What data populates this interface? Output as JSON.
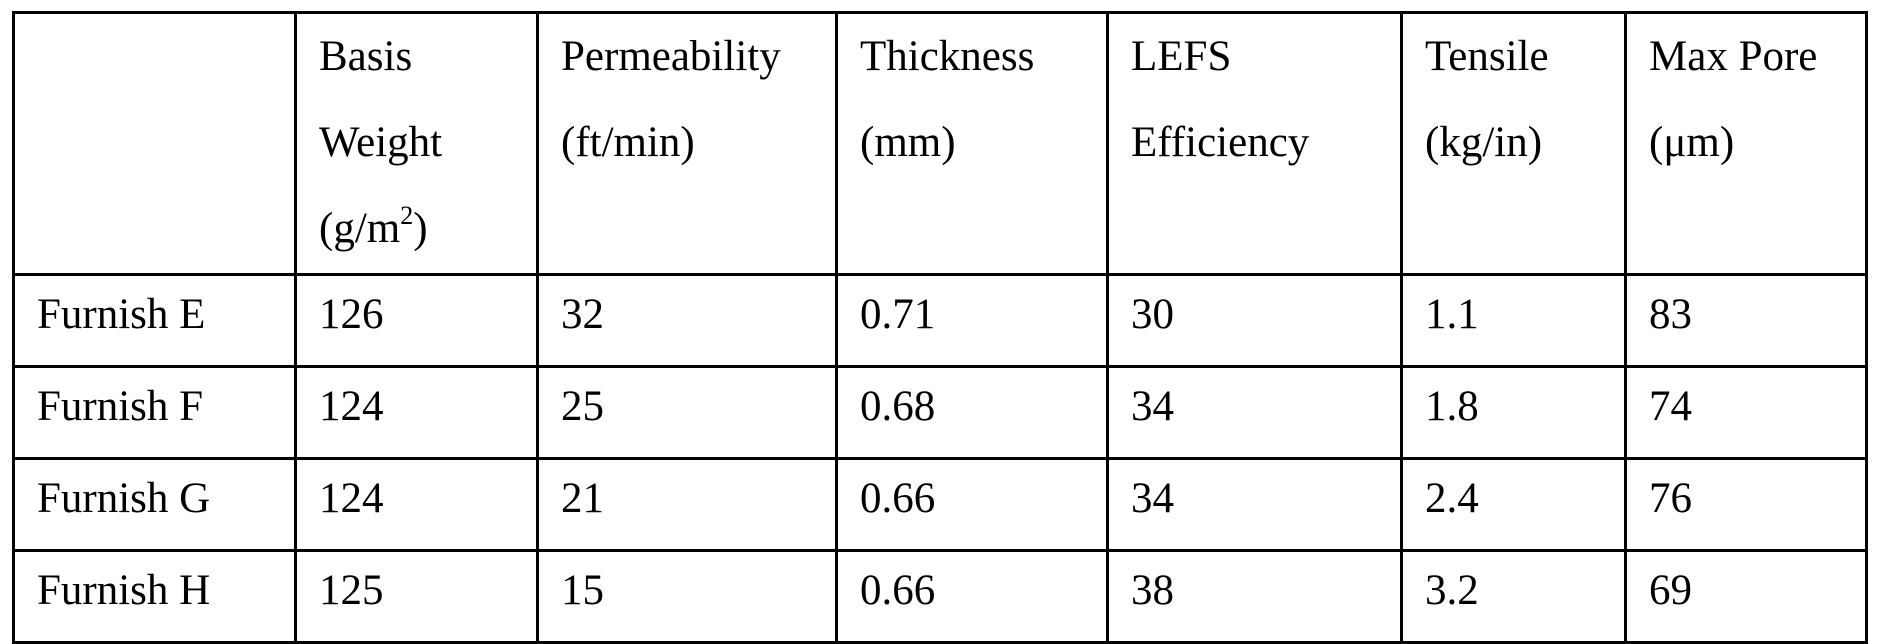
{
  "table": {
    "headers": [
      {
        "lines": []
      },
      {
        "lines": [
          "Basis",
          "Weight"
        ],
        "unit_pre": "(g/m",
        "unit_sup": "2",
        "unit_post": ")"
      },
      {
        "lines": [
          "Permeability",
          "(ft/min)"
        ]
      },
      {
        "lines": [
          "Thickness",
          "(mm)"
        ]
      },
      {
        "lines": [
          "LEFS",
          "Efficiency"
        ]
      },
      {
        "lines": [
          "Tensile",
          "(kg/in)"
        ]
      },
      {
        "lines": [
          "Max Pore",
          "(μm)"
        ]
      }
    ],
    "rows": [
      [
        "Furnish E",
        "126",
        "32",
        "0.71",
        "30",
        "1.1",
        "83"
      ],
      [
        "Furnish F",
        "124",
        "25",
        "0.68",
        "34",
        "1.8",
        "74"
      ],
      [
        "Furnish G",
        "124",
        "21",
        "0.66",
        "34",
        "2.4",
        "76"
      ],
      [
        "Furnish H",
        "125",
        "15",
        "0.66",
        "38",
        "3.2",
        "69"
      ]
    ]
  }
}
